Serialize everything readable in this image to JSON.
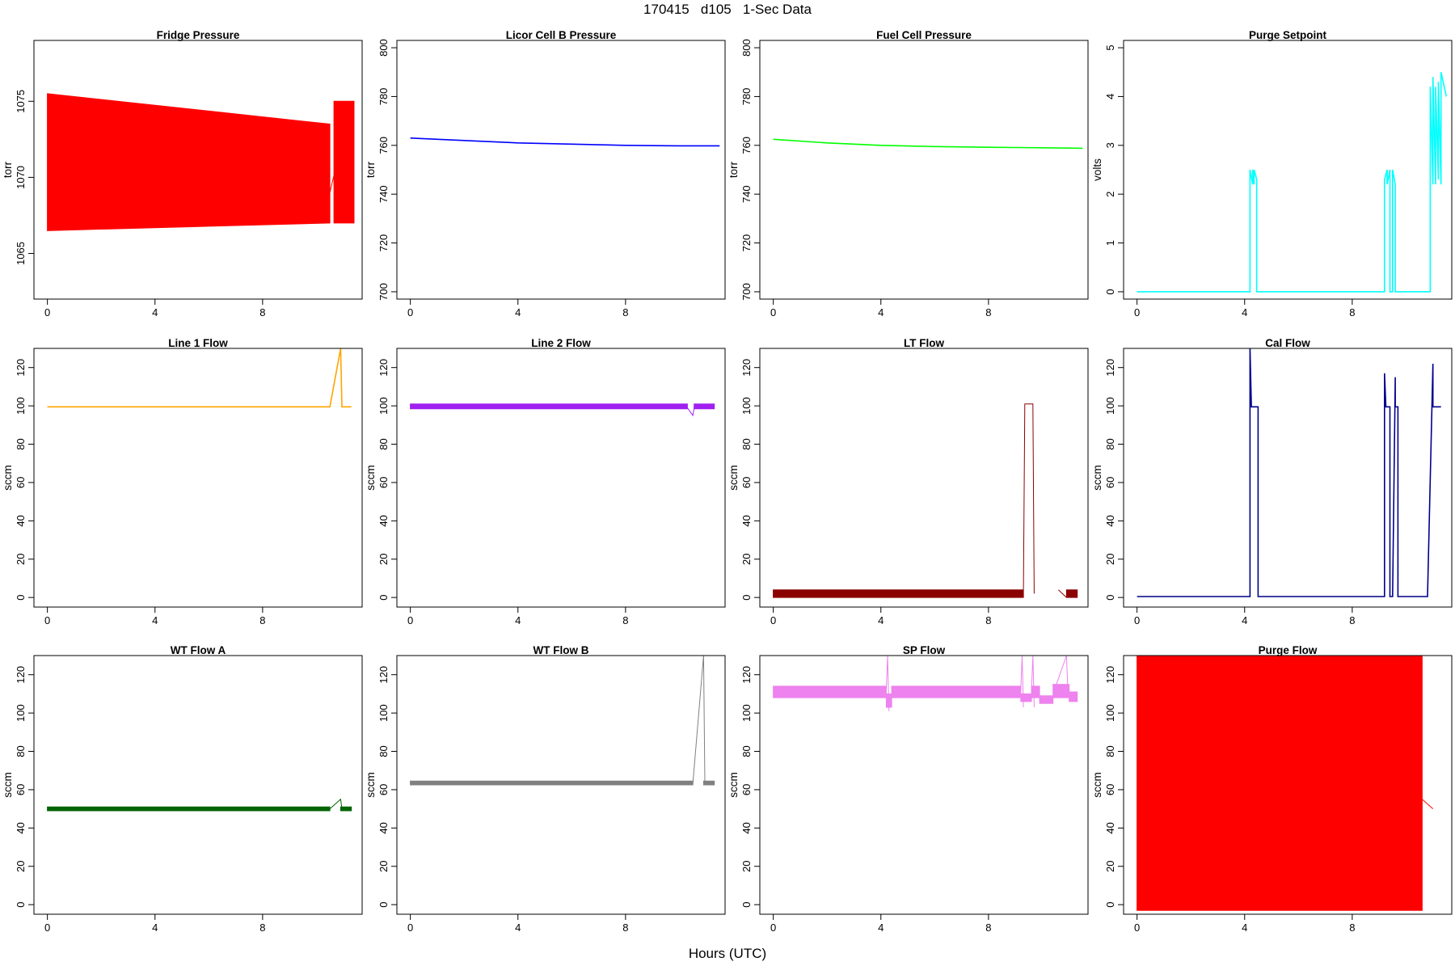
{
  "figure": {
    "title": "170415   d105   1-Sec Data",
    "xlabel": "Hours (UTC)"
  },
  "chart_data": [
    {
      "type": "line",
      "title": "Fridge Pressure",
      "ylabel": "torr",
      "color": "#ff0000",
      "xlim": [
        -0.5,
        11.7
      ],
      "ylim": [
        1062,
        1079
      ],
      "xticks": [
        0,
        4,
        8
      ],
      "yticks": [
        1065,
        1070,
        1075
      ],
      "series": [
        {
          "style": "band",
          "x": [
            0,
            10.5,
            10.6,
            10.65,
            11.4
          ],
          "low": [
            1066.5,
            1067,
            null,
            1067,
            1067
          ],
          "high": [
            1075.5,
            1073.5,
            null,
            1075,
            1075
          ]
        }
      ],
      "connectors": [
        {
          "x": [
            10.5,
            10.9
          ],
          "y": [
            1069,
            1072
          ]
        }
      ]
    },
    {
      "type": "line",
      "title": "Licor Cell B Pressure",
      "ylabel": "torr",
      "color": "#0000ff",
      "xlim": [
        -0.5,
        11.7
      ],
      "ylim": [
        697,
        803
      ],
      "xticks": [
        0,
        4,
        8
      ],
      "yticks": [
        700,
        720,
        740,
        760,
        780,
        800
      ],
      "series": [
        {
          "style": "line",
          "x": [
            0,
            2,
            4,
            6,
            8,
            10,
            11.5
          ],
          "y": [
            763,
            762,
            761,
            760.5,
            760,
            759.8,
            759.8
          ]
        }
      ]
    },
    {
      "type": "line",
      "title": "Fuel Cell Pressure",
      "ylabel": "torr",
      "color": "#00ff00",
      "xlim": [
        -0.5,
        11.7
      ],
      "ylim": [
        697,
        803
      ],
      "xticks": [
        0,
        4,
        8
      ],
      "yticks": [
        700,
        720,
        740,
        760,
        780,
        800
      ],
      "series": [
        {
          "style": "line",
          "x": [
            0,
            2,
            4,
            6,
            8,
            10,
            11.5
          ],
          "y": [
            762.5,
            761,
            760,
            759.5,
            759.2,
            759,
            758.8
          ]
        }
      ]
    },
    {
      "type": "line",
      "title": "Purge Setpoint",
      "ylabel": "volts",
      "color": "#00ffff",
      "xlim": [
        -0.5,
        11.7
      ],
      "ylim": [
        -0.15,
        5.15
      ],
      "xticks": [
        0,
        4,
        8
      ],
      "yticks": [
        0,
        1,
        2,
        3,
        4,
        5
      ],
      "series": [
        {
          "style": "line",
          "x": [
            0,
            4.2,
            4.2,
            4.3,
            4.3,
            4.35,
            4.35,
            4.45,
            4.45,
            9.2,
            9.2,
            9.3,
            9.3,
            9.4,
            9.4,
            9.5,
            9.5,
            9.6,
            9.6,
            9.7,
            9.7,
            10.9,
            10.9,
            11.0,
            11.0,
            11.1,
            11.1,
            11.2,
            11.2,
            11.3,
            11.3,
            11.5
          ],
          "y": [
            0,
            0,
            2.5,
            2.2,
            2.5,
            2.2,
            2.5,
            2.3,
            0,
            0,
            2.3,
            2.5,
            2.2,
            2.5,
            0,
            0,
            2.5,
            2.2,
            0,
            0,
            0,
            0,
            4.2,
            2.2,
            4.4,
            2.2,
            4.2,
            2.3,
            4.3,
            2.2,
            4.5,
            4.0
          ]
        }
      ]
    },
    {
      "type": "line",
      "title": "Line 1 Flow",
      "ylabel": "sccm",
      "color": "#ffa500",
      "xlim": [
        -0.5,
        11.7
      ],
      "ylim": [
        -5,
        130
      ],
      "xticks": [
        0,
        4,
        8
      ],
      "yticks": [
        0,
        20,
        40,
        60,
        80,
        100,
        120
      ],
      "series": [
        {
          "style": "line",
          "x": [
            0,
            10.5,
            10.9,
            10.95,
            11.3
          ],
          "y": [
            99.5,
            99.5,
            130,
            99.5,
            99.5
          ]
        }
      ]
    },
    {
      "type": "line",
      "title": "Line 2 Flow",
      "ylabel": "sccm",
      "color": "#a020f0",
      "xlim": [
        -0.5,
        11.7
      ],
      "ylim": [
        -5,
        130
      ],
      "xticks": [
        0,
        4,
        8
      ],
      "yticks": [
        0,
        20,
        40,
        60,
        80,
        100,
        120
      ],
      "series": [
        {
          "style": "band",
          "x": [
            0,
            10.3,
            10.45,
            10.55,
            11.3
          ],
          "low": [
            98.5,
            98.5,
            null,
            98.5,
            98.5
          ],
          "high": [
            101,
            101,
            null,
            101,
            101
          ]
        }
      ],
      "connectors": [
        {
          "x": [
            10.3,
            10.5,
            10.55
          ],
          "y": [
            99,
            95,
            99
          ]
        }
      ]
    },
    {
      "type": "line",
      "title": "LT Flow",
      "ylabel": "sccm",
      "color": "#8b0000",
      "xlim": [
        -0.5,
        11.7
      ],
      "ylim": [
        -5,
        130
      ],
      "xticks": [
        0,
        4,
        8
      ],
      "yticks": [
        0,
        20,
        40,
        60,
        80,
        100,
        120
      ],
      "series": [
        {
          "style": "band",
          "x": [
            0,
            9.3,
            9.35,
            9.65,
            9.7,
            10.6,
            10.65,
            10.9,
            11.3
          ],
          "low": [
            0,
            0,
            null,
            97,
            null,
            0,
            null,
            0,
            0
          ],
          "high": [
            4,
            4,
            null,
            102,
            null,
            4.5,
            null,
            4,
            4
          ]
        }
      ],
      "connectors": [
        {
          "x": [
            9.3,
            9.35,
            9.65,
            9.7
          ],
          "y": [
            4,
            101,
            101,
            2
          ]
        },
        {
          "x": [
            10.6,
            10.9
          ],
          "y": [
            4,
            0
          ]
        }
      ]
    },
    {
      "type": "line",
      "title": "Cal Flow",
      "ylabel": "sccm",
      "color": "#00008b",
      "xlim": [
        -0.5,
        11.7
      ],
      "ylim": [
        -5,
        130
      ],
      "xticks": [
        0,
        4,
        8
      ],
      "yticks": [
        0,
        20,
        40,
        60,
        80,
        100,
        120
      ],
      "series": [
        {
          "style": "line",
          "x": [
            0,
            4.2,
            4.2,
            4.25,
            4.5,
            4.5,
            9.2,
            9.2,
            9.25,
            9.4,
            9.4,
            9.5,
            9.6,
            9.6,
            9.65,
            9.7,
            9.7,
            10.6,
            10.6,
            10.8,
            11.0,
            11.0,
            11.3
          ],
          "y": [
            0.5,
            0.5,
            130,
            99.5,
            99.5,
            0.5,
            0.5,
            117,
            99.5,
            99.5,
            0.5,
            0.5,
            115,
            99.5,
            99.5,
            99.5,
            0.5,
            0.5,
            0.5,
            0.5,
            122,
            99.5,
            99.5
          ]
        }
      ]
    },
    {
      "type": "line",
      "title": "WT Flow A",
      "ylabel": "sccm",
      "color": "#006400",
      "xlim": [
        -0.5,
        11.7
      ],
      "ylim": [
        -5,
        130
      ],
      "xticks": [
        0,
        4,
        8
      ],
      "yticks": [
        0,
        20,
        40,
        60,
        80,
        100,
        120
      ],
      "series": [
        {
          "style": "band",
          "x": [
            0,
            10.5,
            10.55,
            10.9,
            11.3
          ],
          "low": [
            49,
            49,
            null,
            49,
            49
          ],
          "high": [
            51,
            51,
            null,
            51,
            51
          ]
        }
      ],
      "connectors": [
        {
          "x": [
            10.5,
            10.9,
            10.95
          ],
          "y": [
            50,
            55,
            50
          ]
        }
      ]
    },
    {
      "type": "line",
      "title": "WT Flow B",
      "ylabel": "sccm",
      "color": "#808080",
      "xlim": [
        -0.5,
        11.7
      ],
      "ylim": [
        -5,
        130
      ],
      "xticks": [
        0,
        4,
        8
      ],
      "yticks": [
        0,
        20,
        40,
        60,
        80,
        100,
        120
      ],
      "series": [
        {
          "style": "band",
          "x": [
            0,
            10.5,
            10.55,
            10.9,
            11.3
          ],
          "low": [
            62.5,
            62.5,
            null,
            62.5,
            62.5
          ],
          "high": [
            64.5,
            64.5,
            null,
            64.5,
            64.5
          ]
        }
      ],
      "connectors": [
        {
          "x": [
            10.5,
            10.9,
            10.95
          ],
          "y": [
            63,
            130,
            63
          ]
        }
      ]
    },
    {
      "type": "line",
      "title": "SP Flow",
      "ylabel": "sccm",
      "color": "#ee82ee",
      "xlim": [
        -0.5,
        11.7
      ],
      "ylim": [
        -5,
        130
      ],
      "xticks": [
        0,
        4,
        8
      ],
      "yticks": [
        0,
        20,
        40,
        60,
        80,
        100,
        120
      ],
      "series": [
        {
          "style": "band",
          "x": [
            0,
            4.2,
            4.2,
            4.4,
            4.4,
            9.2,
            9.2,
            9.6,
            9.6,
            9.9,
            9.9,
            10.4,
            10.4,
            11.0,
            11.0,
            11.3
          ],
          "low": [
            108,
            108,
            103,
            103,
            108,
            108,
            106,
            106,
            108,
            108,
            105,
            105,
            108,
            108,
            106,
            106
          ],
          "high": [
            114,
            114,
            110,
            110,
            114,
            114,
            110,
            110,
            114,
            114,
            109,
            109,
            115,
            115,
            111,
            111
          ]
        }
      ],
      "connectors": [
        {
          "x": [
            4.2,
            4.25,
            4.3
          ],
          "y": [
            112,
            130,
            101
          ]
        },
        {
          "x": [
            9.2,
            9.25,
            9.3
          ],
          "y": [
            112,
            130,
            103
          ]
        },
        {
          "x": [
            9.6,
            9.65,
            9.7
          ],
          "y": [
            112,
            130,
            103
          ]
        },
        {
          "x": [
            10.4,
            10.9,
            10.95
          ],
          "y": [
            110,
            130,
            112
          ]
        }
      ]
    },
    {
      "type": "line",
      "title": "Purge Flow",
      "ylabel": "sccm",
      "color": "#ff0000",
      "xlim": [
        -0.5,
        11.7
      ],
      "ylim": [
        -5,
        130
      ],
      "xticks": [
        0,
        4,
        8
      ],
      "yticks": [
        0,
        20,
        40,
        60,
        80,
        100,
        120
      ],
      "series": [
        {
          "style": "band",
          "x": [
            0,
            10.6,
            10.65,
            10.8,
            10.85,
            11.0,
            11.05,
            11.3
          ],
          "low": [
            -3,
            -3,
            null,
            -3,
            null,
            -3,
            null,
            -3
          ],
          "high": [
            130,
            130,
            null,
            130,
            null,
            130,
            null,
            130
          ]
        }
      ],
      "connectors": [
        {
          "x": [
            10.6,
            11.0
          ],
          "y": [
            55,
            50
          ]
        }
      ]
    }
  ]
}
